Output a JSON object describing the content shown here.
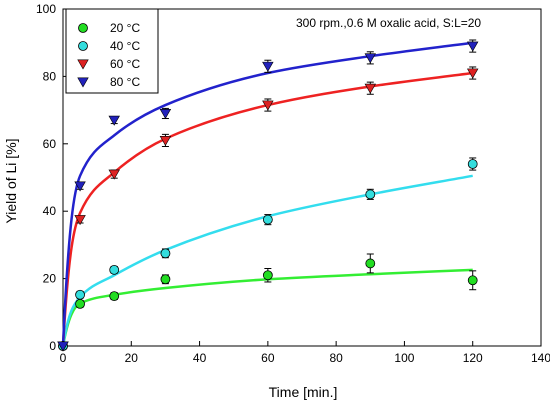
{
  "chart_data": {
    "type": "scatter",
    "title": "",
    "annotation": "300 rpm.,0.6 M oxalic acid, S:L=20",
    "xlabel": "Time [min.]",
    "ylabel": "Yield of Li [%]",
    "xlim": [
      0,
      140
    ],
    "ylim": [
      0,
      100
    ],
    "xticks": [
      0,
      20,
      40,
      60,
      80,
      100,
      120,
      140
    ],
    "yticks": [
      0,
      20,
      40,
      60,
      80,
      100
    ],
    "grid": false,
    "legend_position": "top-left",
    "series": [
      {
        "name": "20 °C",
        "marker": "circle",
        "color": "#22dd22",
        "fit_color": "#33ee33",
        "x": [
          0,
          5,
          15,
          30,
          60,
          90,
          120
        ],
        "y": [
          0,
          12.5,
          14.8,
          19.8,
          21,
          24.5,
          19.5
        ],
        "err": [
          0,
          1,
          1,
          1.3,
          2,
          2.8,
          2.8
        ],
        "fit": [
          0,
          12.6,
          15.2,
          17.2,
          19.8,
          21.3,
          22.6
        ]
      },
      {
        "name": "40 °C",
        "marker": "circle",
        "color": "#33dddd",
        "fit_color": "#33ddee",
        "x": [
          0,
          5,
          15,
          30,
          60,
          90,
          120
        ],
        "y": [
          0,
          15.2,
          22.6,
          27.5,
          37.5,
          45,
          54
        ],
        "err": [
          0,
          1,
          1,
          1.3,
          1.5,
          1.5,
          1.8
        ],
        "fit": [
          0,
          14.5,
          21,
          28.5,
          38.5,
          45,
          50.5
        ]
      },
      {
        "name": "60 °C",
        "marker": "triangle-down",
        "color": "#dd2222",
        "fit_color": "#ee2222",
        "x": [
          0,
          5,
          15,
          30,
          60,
          90,
          120
        ],
        "y": [
          0,
          37.5,
          51,
          61,
          71.5,
          76.5,
          81
        ],
        "err": [
          0,
          1,
          1.2,
          1.8,
          1.8,
          1.8,
          1.8
        ],
        "fit": [
          0,
          39.5,
          51.5,
          61.5,
          71.5,
          77,
          81
        ]
      },
      {
        "name": "80 °C",
        "marker": "triangle-down",
        "color": "#2222bb",
        "fit_color": "#2222cc",
        "x": [
          0,
          5,
          15,
          30,
          60,
          90,
          120
        ],
        "y": [
          0,
          47.5,
          67,
          69,
          83,
          85.5,
          89
        ],
        "err": [
          0,
          1,
          1,
          1.5,
          1.8,
          1.8,
          1.8
        ],
        "fit": [
          0,
          50.5,
          62.5,
          71.5,
          81,
          86,
          90
        ]
      }
    ]
  }
}
